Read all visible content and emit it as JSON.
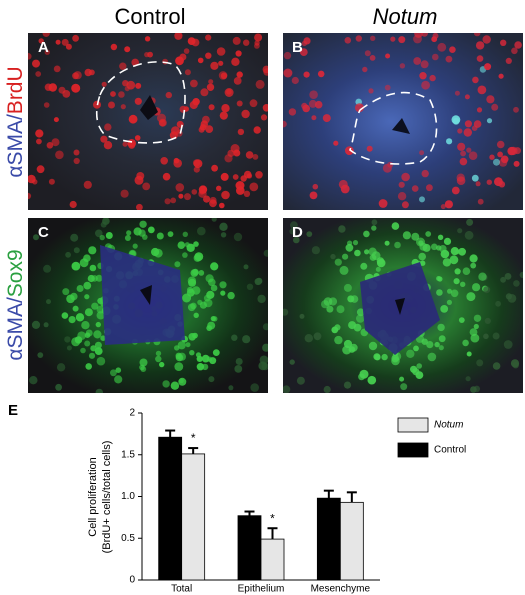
{
  "figure": {
    "column_headers": [
      "Control",
      "Notum"
    ],
    "row_labels": [
      [
        "αSMA/",
        "BrdU"
      ],
      [
        "αSMA/",
        "Sox9"
      ]
    ],
    "panel_letters": [
      "A",
      "B",
      "C",
      "D"
    ]
  },
  "chart_data": {
    "type": "bar",
    "panel_letter": "E",
    "y_label": [
      "Cell proliferation",
      "(BrdU+ cells/total cells)"
    ],
    "categories": [
      "Total",
      "Epithelium",
      "Mesenchyme"
    ],
    "series": [
      {
        "name": "Control",
        "color": "#000000",
        "values": [
          1.71,
          0.77,
          0.98
        ],
        "errors": [
          0.08,
          0.05,
          0.09
        ]
      },
      {
        "name": "Notum",
        "color": "#e6e6e6",
        "values": [
          1.51,
          0.49,
          0.93
        ],
        "errors": [
          0.07,
          0.13,
          0.12
        ]
      }
    ],
    "legend_order": [
      "Notum",
      "Control"
    ],
    "annotations": [
      {
        "text": "*",
        "category": 0,
        "series": 1
      },
      {
        "text": "*",
        "category": 1,
        "series": 1
      }
    ],
    "ylim": [
      0,
      2
    ],
    "yticks": [
      0,
      0.5,
      {
        "value": 1,
        "label": "1.0"
      },
      1.5,
      2
    ]
  }
}
